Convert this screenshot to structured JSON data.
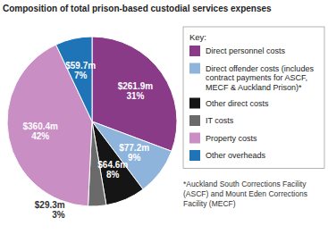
{
  "chart_data": {
    "type": "pie",
    "title": "Composition of total prison-based custodial services expenses",
    "categories": [
      "Direct personnel costs",
      "Direct offender costs (includes contract payments for ASCF, MECF & Auckland Prison)*",
      "Other direct costs",
      "IT costs",
      "Property costs",
      "Other overheads"
    ],
    "values": [
      261.9,
      77.2,
      64.6,
      29.3,
      360.4,
      59.7
    ],
    "value_labels": [
      "$261.9m",
      "$77.2m",
      "$64.6m",
      "$29.3m",
      "$360.4m",
      "$59.7m"
    ],
    "percent": [
      31,
      9,
      8,
      3,
      42,
      7
    ],
    "percent_labels": [
      "31%",
      "9%",
      "8%",
      "3%",
      "42%",
      "7%"
    ],
    "colors": [
      "#8a3b88",
      "#8eb4dc",
      "#151515",
      "#6a6a6a",
      "#c98ec4",
      "#1f73b7"
    ],
    "data_labels": true,
    "legend": "top-right",
    "legend_title": "Key:",
    "footnote": "*Auckland South Corrections Facility (ASCF) and Mount Eden Corrections Facility (MECF)"
  }
}
